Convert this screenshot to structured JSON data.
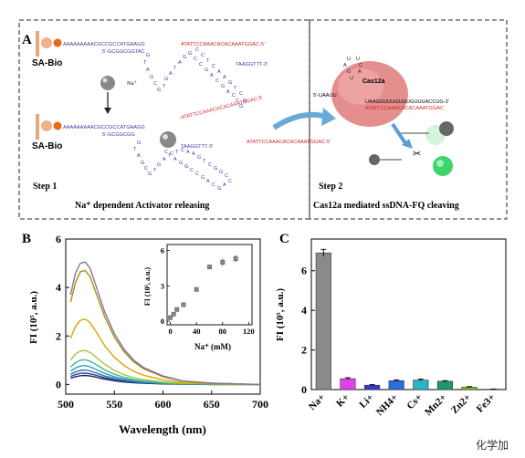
{
  "panelA": {
    "label": "A",
    "sa_bio_top": "SA-Bio",
    "sa_bio_bottom": "SA-Bio",
    "strand_top_blue": "AAAAAAAAACGCCGCCATGAAGG",
    "strand_top_red": "ATATTCCAAACACACAAATGGAC-5'",
    "comp_top": "5'-GCGGCGGTAC",
    "comp_top_right": "TAAGGTTT-3'",
    "na_label": "Na⁺",
    "strand_bottom_blue": "AAAAAAAAACGCCGCCATGAAGG",
    "comp_bottom": "5'-GCGGCGG",
    "comp_bottom_right": "TAAGGTTT-3'",
    "released_red_1": "-ATATTCCAAACACACAAATGGAC-5'",
    "released_red_2": "ATATTCCAAACACACAAATGGAC-5'",
    "step1": "Step 1",
    "step1_caption": "Na⁺ dependent Activator releasing",
    "cas_label": "Cas12a",
    "cas_seq_top": "5'-UAAUU",
    "cas_seq_mid": "UAAGGUUUGUGUGUUUACCUG-3'",
    "cas_seq_red": "ATATTCCAAACACACAAATGGAC",
    "step2": "Step 2",
    "step2_caption": "Cas12a mediated ssDNA-FQ cleaving",
    "loop_bases": [
      "G",
      "T",
      "A",
      "G",
      "C",
      "G",
      "T",
      "G",
      "A",
      "T",
      "A",
      "G",
      "G",
      "C",
      "C",
      "G",
      "A",
      "C",
      "G",
      "A",
      "C",
      "C",
      "G",
      "G",
      "C",
      "T",
      "G",
      "A",
      "A",
      "C",
      "T",
      "C",
      "C"
    ]
  },
  "panelB": {
    "label": "B",
    "xlabel": "Wavelength (nm)",
    "ylabel": "FI (10⁵, a.u.)",
    "xticks": [
      "500",
      "550",
      "600",
      "650",
      "700"
    ],
    "yticks": [
      "0",
      "2",
      "4",
      "6"
    ],
    "inset_xlabel": "Na⁺ (mM)",
    "inset_ylabel": "FI (10⁵, a.u.)",
    "inset_xticks": [
      "0",
      "40",
      "80",
      "120"
    ],
    "inset_yticks": [
      "0",
      "3",
      "6"
    ]
  },
  "panelC": {
    "label": "C",
    "ylabel": "FI (10⁵, a.u.)",
    "yticks": [
      "0",
      "2",
      "4",
      "6"
    ]
  },
  "watermark": "化学加",
  "chart_data": [
    {
      "type": "line",
      "panel": "B",
      "xlabel": "Wavelength (nm)",
      "ylabel": "FI (10⁵, a.u.)",
      "xlim": [
        500,
        700
      ],
      "ylim": [
        -0.4,
        6
      ],
      "x": [
        505,
        510,
        515,
        520,
        525,
        530,
        535,
        540,
        550,
        560,
        570,
        580,
        600,
        620,
        650,
        700
      ],
      "series": [
        {
          "color": "#7a7aa0",
          "values": [
            3.7,
            4.6,
            5.0,
            5.05,
            4.8,
            4.2,
            3.6,
            3.0,
            2.1,
            1.45,
            1.0,
            0.7,
            0.35,
            0.15,
            0.05,
            0.0
          ]
        },
        {
          "color": "#b8860b",
          "values": [
            3.4,
            4.2,
            4.65,
            4.7,
            4.45,
            3.9,
            3.35,
            2.8,
            1.95,
            1.35,
            0.93,
            0.65,
            0.32,
            0.14,
            0.05,
            0.0
          ]
        },
        {
          "color": "#d9a400",
          "values": [
            1.9,
            2.4,
            2.65,
            2.7,
            2.55,
            2.25,
            1.93,
            1.6,
            1.12,
            0.78,
            0.54,
            0.38,
            0.19,
            0.08,
            0.03,
            0.0
          ]
        },
        {
          "color": "#a7c83a",
          "values": [
            1.0,
            1.25,
            1.38,
            1.4,
            1.32,
            1.16,
            1.0,
            0.83,
            0.58,
            0.4,
            0.28,
            0.2,
            0.1,
            0.04,
            0.02,
            0.0
          ]
        },
        {
          "color": "#3cb89a",
          "values": [
            0.72,
            0.9,
            1.0,
            1.02,
            0.96,
            0.85,
            0.73,
            0.6,
            0.42,
            0.29,
            0.2,
            0.14,
            0.07,
            0.03,
            0.01,
            0.0
          ]
        },
        {
          "color": "#2aa0b8",
          "values": [
            0.55,
            0.68,
            0.76,
            0.78,
            0.73,
            0.64,
            0.55,
            0.46,
            0.32,
            0.22,
            0.15,
            0.11,
            0.05,
            0.02,
            0.01,
            0.0
          ]
        },
        {
          "color": "#2f6fb0",
          "values": [
            0.42,
            0.52,
            0.58,
            0.6,
            0.56,
            0.49,
            0.42,
            0.35,
            0.25,
            0.17,
            0.12,
            0.08,
            0.04,
            0.02,
            0.01,
            0.0
          ]
        },
        {
          "color": "#2a3f8f",
          "values": [
            0.33,
            0.41,
            0.46,
            0.47,
            0.44,
            0.39,
            0.33,
            0.28,
            0.19,
            0.13,
            0.09,
            0.06,
            0.03,
            0.01,
            0.0,
            0.0
          ]
        },
        {
          "color": "#1f2566",
          "values": [
            0.26,
            0.32,
            0.36,
            0.37,
            0.35,
            0.31,
            0.26,
            0.22,
            0.15,
            0.1,
            0.07,
            0.05,
            0.02,
            0.01,
            0.0,
            0.0
          ]
        }
      ]
    },
    {
      "type": "scatter",
      "panel": "B-inset",
      "xlabel": "Na⁺ (mM)",
      "ylabel": "FI (10⁵, a.u.)",
      "xlim": [
        -5,
        125
      ],
      "ylim": [
        -0.3,
        6.5
      ],
      "x": [
        0,
        5,
        10,
        20,
        40,
        60,
        80,
        100
      ],
      "y": [
        0.3,
        0.6,
        1.0,
        1.4,
        2.7,
        4.6,
        5.0,
        5.3
      ],
      "err": [
        0.05,
        0.05,
        0.05,
        0.1,
        0.15,
        0.2,
        0.3,
        0.3
      ]
    },
    {
      "type": "bar",
      "panel": "C",
      "ylabel": "FI (10⁵, a.u.)",
      "ylim": [
        0,
        7.6
      ],
      "categories": [
        "Na+",
        "K+",
        "Li+",
        "NH4+",
        "Cs+",
        "Mn2+",
        "Zn2+",
        "Fe3+"
      ],
      "values": [
        6.9,
        0.55,
        0.22,
        0.45,
        0.48,
        0.42,
        0.12,
        0.02
      ],
      "errors": [
        0.18,
        0.05,
        0.03,
        0.04,
        0.05,
        0.03,
        0.03,
        0.01
      ],
      "colors": [
        "#8a8a8a",
        "#e040e8",
        "#3a3acc",
        "#2a6fe0",
        "#28b4c8",
        "#1e9a6a",
        "#7cc61e",
        "#a58a1e"
      ]
    }
  ]
}
